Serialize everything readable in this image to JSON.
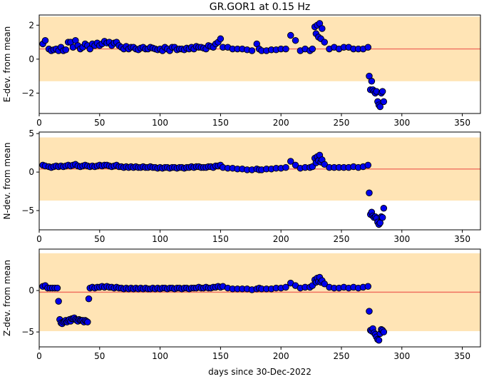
{
  "chart_data": [
    {
      "type": "scatter",
      "title": "GR.GOR1 at 0.15 Hz",
      "ylabel": "E-dev. from mean",
      "xlabel": "",
      "xlim": [
        0,
        365
      ],
      "ylim": [
        -3.2,
        2.6
      ],
      "xticks": [
        0,
        50,
        100,
        150,
        200,
        250,
        300,
        350
      ],
      "yticks": [
        -2,
        0,
        2
      ],
      "band": [
        -1.3,
        2.5
      ],
      "reference_line": 0.6,
      "show_xticklabels": true,
      "series": [
        {
          "x": [
            3,
            5,
            8,
            10,
            12,
            14,
            16,
            18,
            20,
            22,
            24,
            26,
            28,
            30,
            32,
            34,
            36,
            38,
            40,
            42,
            44,
            46,
            48,
            50,
            52,
            54,
            56,
            58,
            60,
            62,
            64,
            66,
            68,
            70,
            72,
            74,
            76,
            78,
            80,
            82,
            84,
            86,
            88,
            90,
            92,
            94,
            96,
            98,
            100,
            102,
            104,
            106,
            108,
            110,
            112,
            114,
            116,
            118,
            120,
            122,
            124,
            126,
            128,
            130,
            132,
            134,
            136,
            138,
            140,
            142,
            144,
            146,
            148,
            150,
            152,
            156,
            160,
            164,
            168,
            172,
            176,
            180,
            182,
            184,
            188,
            192,
            196,
            200,
            204,
            208,
            212,
            216,
            220,
            224,
            226,
            228,
            229,
            230,
            231,
            232,
            233,
            234,
            236,
            240,
            244,
            248,
            252,
            256,
            260,
            264,
            268,
            272,
            273,
            274,
            275,
            276,
            277,
            278,
            279,
            280,
            281,
            282,
            283,
            284,
            285
          ],
          "y": [
            0.9,
            1.1,
            0.6,
            0.5,
            0.55,
            0.6,
            0.5,
            0.7,
            0.5,
            0.55,
            1.0,
            1.0,
            0.7,
            1.1,
            0.8,
            0.6,
            0.7,
            0.9,
            0.8,
            0.6,
            0.9,
            0.8,
            0.95,
            0.8,
            0.9,
            1.05,
            0.95,
            1.0,
            0.8,
            0.95,
            1.0,
            0.8,
            0.7,
            0.6,
            0.75,
            0.6,
            0.7,
            0.7,
            0.6,
            0.55,
            0.65,
            0.7,
            0.6,
            0.6,
            0.7,
            0.65,
            0.6,
            0.55,
            0.6,
            0.5,
            0.7,
            0.6,
            0.5,
            0.7,
            0.7,
            0.55,
            0.6,
            0.6,
            0.55,
            0.65,
            0.6,
            0.7,
            0.6,
            0.75,
            0.7,
            0.7,
            0.65,
            0.6,
            0.8,
            0.75,
            0.7,
            0.9,
            1.0,
            1.2,
            0.7,
            0.7,
            0.6,
            0.6,
            0.6,
            0.55,
            0.5,
            0.9,
            0.6,
            0.5,
            0.5,
            0.55,
            0.55,
            0.6,
            0.6,
            1.4,
            1.1,
            0.5,
            0.6,
            0.5,
            0.6,
            1.9,
            1.5,
            2.0,
            1.3,
            2.1,
            1.2,
            1.8,
            1.0,
            0.6,
            0.7,
            0.6,
            0.7,
            0.7,
            0.6,
            0.6,
            0.6,
            0.7,
            -1.0,
            -1.8,
            -1.3,
            -1.8,
            -1.9,
            -2.0,
            -1.9,
            -2.5,
            -2.7,
            -2.8,
            -2.0,
            -1.9,
            -2.5
          ]
        }
      ]
    },
    {
      "type": "scatter",
      "title": "",
      "ylabel": "N-dev. from mean",
      "xlabel": "",
      "xlim": [
        0,
        365
      ],
      "ylim": [
        -7.5,
        5.2
      ],
      "xticks": [
        0,
        50,
        100,
        150,
        200,
        250,
        300,
        350
      ],
      "yticks": [
        -5,
        0,
        5
      ],
      "band": [
        -3.7,
        4.5
      ],
      "reference_line": 0.4,
      "show_xticklabels": true,
      "series": [
        {
          "x": [
            3,
            5,
            8,
            10,
            12,
            14,
            16,
            18,
            20,
            22,
            24,
            26,
            28,
            30,
            32,
            34,
            36,
            38,
            40,
            42,
            44,
            46,
            48,
            50,
            52,
            54,
            56,
            58,
            60,
            62,
            64,
            66,
            68,
            70,
            72,
            74,
            76,
            78,
            80,
            82,
            84,
            86,
            88,
            90,
            92,
            94,
            96,
            98,
            100,
            102,
            104,
            106,
            108,
            110,
            112,
            114,
            116,
            118,
            120,
            122,
            124,
            126,
            128,
            130,
            132,
            134,
            136,
            138,
            140,
            142,
            144,
            146,
            148,
            150,
            152,
            156,
            160,
            164,
            168,
            172,
            176,
            180,
            182,
            184,
            188,
            192,
            196,
            200,
            204,
            208,
            212,
            216,
            220,
            224,
            226,
            228,
            229,
            230,
            231,
            232,
            233,
            234,
            236,
            240,
            244,
            248,
            252,
            256,
            260,
            264,
            268,
            272,
            273,
            274,
            275,
            276,
            277,
            278,
            279,
            280,
            281,
            282,
            283,
            284,
            285
          ],
          "y": [
            0.9,
            0.8,
            0.7,
            0.6,
            0.7,
            0.8,
            0.7,
            0.8,
            0.7,
            0.8,
            0.9,
            0.8,
            0.9,
            1.0,
            0.8,
            0.7,
            0.8,
            0.9,
            0.8,
            0.7,
            0.8,
            0.7,
            0.8,
            0.9,
            0.8,
            0.9,
            0.9,
            0.8,
            0.7,
            0.8,
            0.9,
            0.7,
            0.7,
            0.6,
            0.7,
            0.6,
            0.7,
            0.6,
            0.7,
            0.6,
            0.6,
            0.7,
            0.6,
            0.6,
            0.7,
            0.6,
            0.6,
            0.5,
            0.6,
            0.5,
            0.6,
            0.6,
            0.5,
            0.6,
            0.6,
            0.5,
            0.6,
            0.6,
            0.5,
            0.6,
            0.6,
            0.7,
            0.6,
            0.7,
            0.7,
            0.6,
            0.6,
            0.6,
            0.7,
            0.7,
            0.6,
            0.8,
            0.8,
            0.9,
            0.6,
            0.5,
            0.5,
            0.4,
            0.4,
            0.3,
            0.3,
            0.4,
            0.3,
            0.3,
            0.4,
            0.4,
            0.5,
            0.5,
            0.6,
            1.4,
            0.9,
            0.5,
            0.6,
            0.6,
            0.7,
            1.8,
            1.2,
            2.0,
            1.5,
            2.2,
            1.3,
            1.6,
            1.0,
            0.6,
            0.6,
            0.6,
            0.6,
            0.6,
            0.7,
            0.6,
            0.7,
            0.9,
            -2.7,
            -5.5,
            -5.2,
            -5.7,
            -5.9,
            -5.8,
            -6.0,
            -6.5,
            -6.8,
            -6.6,
            -5.8,
            -5.9,
            -4.7
          ]
        }
      ]
    },
    {
      "type": "scatter",
      "title": "",
      "ylabel": "Z-dev. from mean",
      "xlabel": "days since 30-Dec-2022",
      "xlim": [
        0,
        365
      ],
      "ylim": [
        -6.8,
        5.0
      ],
      "xticks": [
        0,
        50,
        100,
        150,
        200,
        250,
        300,
        350
      ],
      "yticks": [
        -5,
        0
      ],
      "band": [
        -4.9,
        4.5
      ],
      "reference_line": -0.2,
      "show_xticklabels": true,
      "series": [
        {
          "x": [
            3,
            5,
            7,
            9,
            11,
            13,
            15,
            16,
            17,
            18,
            19,
            20,
            21,
            22,
            23,
            24,
            25,
            26,
            27,
            28,
            29,
            30,
            31,
            32,
            33,
            34,
            35,
            36,
            37,
            38,
            39,
            40,
            41,
            42,
            44,
            46,
            48,
            50,
            52,
            54,
            56,
            58,
            60,
            62,
            64,
            66,
            68,
            70,
            72,
            74,
            76,
            78,
            80,
            82,
            84,
            86,
            88,
            90,
            92,
            94,
            96,
            98,
            100,
            102,
            104,
            106,
            108,
            110,
            112,
            114,
            116,
            118,
            120,
            122,
            124,
            126,
            128,
            130,
            132,
            134,
            136,
            138,
            140,
            142,
            144,
            146,
            148,
            150,
            152,
            156,
            160,
            164,
            168,
            172,
            176,
            180,
            182,
            184,
            188,
            192,
            196,
            200,
            204,
            208,
            212,
            216,
            220,
            224,
            226,
            228,
            229,
            230,
            231,
            232,
            233,
            234,
            236,
            240,
            244,
            248,
            252,
            256,
            260,
            264,
            268,
            272,
            273,
            274,
            275,
            276,
            277,
            278,
            279,
            280,
            281,
            282,
            283,
            284,
            285
          ],
          "y": [
            0.5,
            0.6,
            0.3,
            0.3,
            0.3,
            0.3,
            0.3,
            -1.3,
            -3.5,
            -3.9,
            -4.0,
            -3.8,
            -3.7,
            -3.6,
            -3.8,
            -3.6,
            -3.5,
            -3.7,
            -3.4,
            -3.4,
            -3.3,
            -3.5,
            -3.6,
            -3.7,
            -3.5,
            -3.6,
            -3.6,
            -3.6,
            -3.8,
            -3.6,
            -3.7,
            -3.8,
            -1.0,
            0.3,
            0.4,
            0.3,
            0.4,
            0.4,
            0.5,
            0.4,
            0.5,
            0.4,
            0.4,
            0.3,
            0.4,
            0.3,
            0.3,
            0.2,
            0.3,
            0.2,
            0.3,
            0.2,
            0.3,
            0.2,
            0.3,
            0.2,
            0.3,
            0.2,
            0.2,
            0.3,
            0.2,
            0.3,
            0.2,
            0.3,
            0.3,
            0.2,
            0.3,
            0.3,
            0.2,
            0.3,
            0.3,
            0.2,
            0.3,
            0.3,
            0.2,
            0.3,
            0.3,
            0.3,
            0.4,
            0.3,
            0.3,
            0.4,
            0.3,
            0.3,
            0.4,
            0.4,
            0.5,
            0.4,
            0.5,
            0.3,
            0.2,
            0.2,
            0.2,
            0.2,
            0.1,
            0.2,
            0.3,
            0.2,
            0.2,
            0.2,
            0.3,
            0.3,
            0.4,
            0.9,
            0.6,
            0.3,
            0.4,
            0.4,
            0.6,
            1.3,
            1.0,
            1.5,
            1.1,
            1.6,
            1.0,
            1.2,
            0.8,
            0.4,
            0.3,
            0.3,
            0.4,
            0.3,
            0.4,
            0.3,
            0.4,
            0.5,
            -2.5,
            -4.8,
            -4.9,
            -4.6,
            -5.1,
            -5.3,
            -5.6,
            -5.9,
            -6.0,
            -5.2,
            -4.7,
            -4.8,
            -5.0
          ]
        }
      ]
    }
  ]
}
